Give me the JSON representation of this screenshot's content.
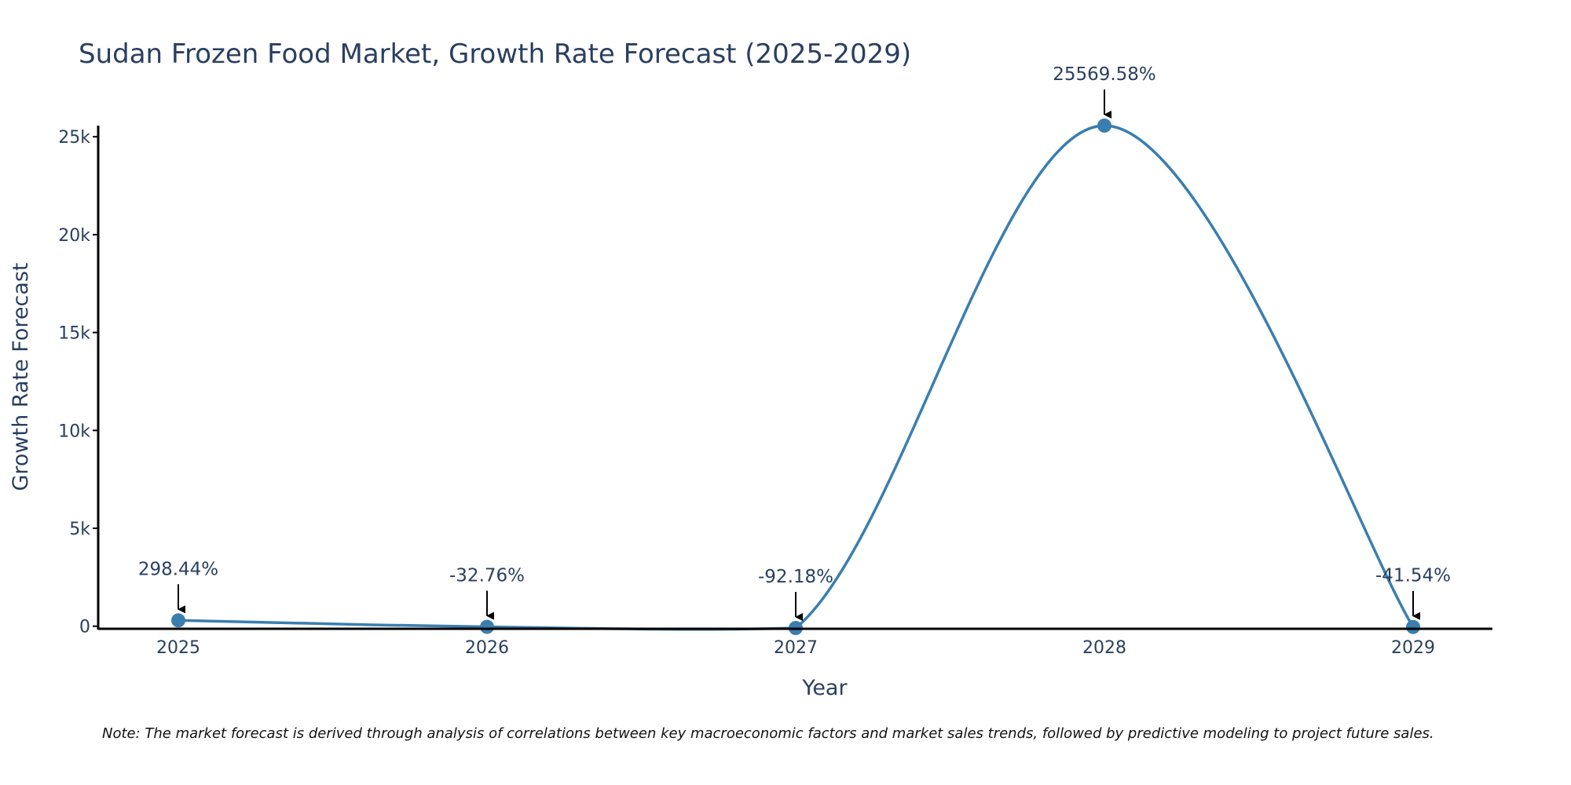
{
  "chart_data": {
    "type": "line",
    "title": "Sudan Frozen Food Market, Growth Rate Forecast (2025-2029)",
    "xlabel": "Year",
    "ylabel": "Growth Rate Forecast",
    "categories": [
      "2025",
      "2026",
      "2027",
      "2028",
      "2029"
    ],
    "values": [
      298.44,
      -32.76,
      -92.18,
      25569.58,
      -41.54
    ],
    "annotations": [
      "298.44%",
      "-32.76%",
      "-92.18%",
      "25569.58%",
      "-41.54%"
    ],
    "ylim": [
      -92.18,
      25569.58
    ],
    "yticks": [
      0,
      5000,
      10000,
      15000,
      20000,
      25000
    ],
    "ytick_labels": [
      "0",
      "5k",
      "10k",
      "15k",
      "20k",
      "25k"
    ],
    "grid": false,
    "line_color": "#3a7eb0",
    "note": "Note: The market forecast is derived through analysis of correlations between key macroeconomic factors and market sales trends, followed by predictive modeling to project future sales."
  }
}
